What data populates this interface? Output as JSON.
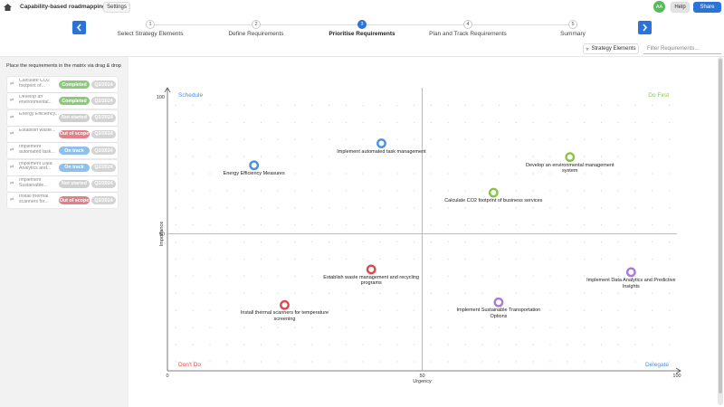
{
  "header": {
    "title": "Capability-based roadmapping",
    "settings": "Settings",
    "avatar": "AA",
    "help": "Help",
    "share": "Share"
  },
  "stepper": {
    "active": 2,
    "steps": [
      {
        "number": "1",
        "label": "Select Strategy Elements"
      },
      {
        "number": "2",
        "label": "Define Requirements"
      },
      {
        "number": "3",
        "label": "Prioritise Requirements"
      },
      {
        "number": "4",
        "label": "Plan and Track Requirements"
      },
      {
        "number": "5",
        "label": "Summary"
      }
    ]
  },
  "toolbar": {
    "filter_button": "Strategy Elements",
    "search_placeholder": "Filter Requirements..."
  },
  "sidebar": {
    "instruction": "Place the requirements in the matrix via drag & drop",
    "items": [
      {
        "name": "Calculate CO2 footprint of...",
        "status": "Completed",
        "color": "#8cc97a",
        "date": "Q2/2024"
      },
      {
        "name": "Develop an environmental...",
        "status": "Completed",
        "color": "#8cc97a",
        "date": "Q2/2024"
      },
      {
        "name": "Energy Efficiency...",
        "status": "Not started",
        "color": "#cfcfcf",
        "date": "Q2/2024"
      },
      {
        "name": "Establish waste...",
        "status": "Out of scope",
        "color": "#e57f87",
        "date": "Q2/2024"
      },
      {
        "name": "Implement automated task...",
        "status": "On track",
        "color": "#8fbfea",
        "date": "Q2/2024"
      },
      {
        "name": "Implement Data Analytics and...",
        "status": "On track",
        "color": "#8fbfea",
        "date": "Q2/2024"
      },
      {
        "name": "Implement Sustainable...",
        "status": "Not started",
        "color": "#cfcfcf",
        "date": "Q2/2024"
      },
      {
        "name": "Install thermal scanners for...",
        "status": "Out of scope",
        "color": "#e57f87",
        "date": "Q2/2024"
      }
    ]
  },
  "chart_data": {
    "type": "scatter",
    "x_label": "Urgency",
    "y_label": "Importance",
    "xlim": [
      0,
      100
    ],
    "ylim": [
      0,
      100
    ],
    "xticks": [
      0,
      50,
      100
    ],
    "yticks": [
      50,
      100
    ],
    "quadrants": {
      "top_left": "Schedule",
      "top_right": "Do First",
      "bottom_left": "Don't Do",
      "bottom_right": "Delegate"
    },
    "labels": [
      "Energy Efficiency Measures",
      "Implement automated task management",
      "Develop an environmental management system",
      "Calculate CO2 footprint of business services",
      "Establish waste management and recycling programs",
      "Install thermal scanners for temperature screening",
      "Implement Sustainable Transportation Options",
      "Implement Data Analytics and Predictive Insights"
    ],
    "x": [
      17,
      42,
      79,
      64,
      40,
      23,
      65,
      91
    ],
    "values": [
      75,
      83,
      78,
      65,
      37,
      24,
      25,
      36
    ],
    "colors": [
      "#4a90e2",
      "#4a90e2",
      "#8bc34a",
      "#8bc34a",
      "#e0474c",
      "#e0474c",
      "#a77bd8",
      "#a77bd8"
    ]
  }
}
